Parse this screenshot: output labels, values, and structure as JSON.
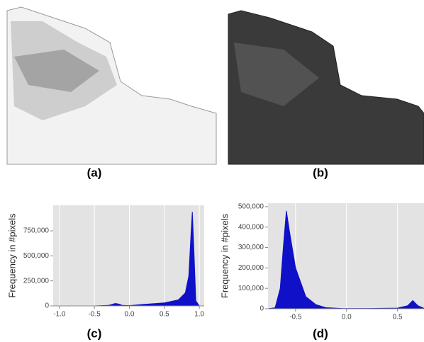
{
  "captions": [
    "(a)",
    "(b)",
    "(c)",
    "(d)"
  ],
  "chart_data": [
    {
      "type": "area",
      "y_label": "Frequency in #pixels",
      "color": "#1010c8",
      "grid": true,
      "xlim": [
        -1.09,
        1.07
      ],
      "ylim": [
        0,
        1005000
      ],
      "xticks": [
        {
          "value": -1.0,
          "label": "-1.0"
        },
        -0.5,
        {
          "value": 0,
          "label": "0.0"
        },
        0.5,
        {
          "value": 1.0,
          "label": "1.0"
        }
      ],
      "yticks": [
        0,
        {
          "value": 250000,
          "label": "250,000"
        },
        {
          "value": 500000,
          "label": "500,000"
        },
        {
          "value": 750000,
          "label": "750,000"
        }
      ],
      "x": [
        -1.0,
        -0.5,
        -0.3,
        -0.2,
        -0.15,
        -0.1,
        0,
        0.2,
        0.5,
        0.7,
        0.8,
        0.85,
        0.88,
        0.9,
        0.92,
        0.95,
        1.0
      ],
      "values": [
        0,
        0,
        5000,
        25000,
        18000,
        5000,
        3000,
        15000,
        30000,
        60000,
        130000,
        300000,
        700000,
        940000,
        600000,
        50000,
        0
      ]
    },
    {
      "type": "area",
      "y_label": "Frequency in #pixels",
      "color": "#1010c8",
      "grid": true,
      "xlim": [
        -0.77,
        0.76
      ],
      "ylim": [
        0,
        517000
      ],
      "xticks": [
        -0.5,
        {
          "value": 0,
          "label": "0.0"
        },
        0.5
      ],
      "yticks": [
        0,
        {
          "value": 100000,
          "label": "100,000"
        },
        {
          "value": 200000,
          "label": "200,000"
        },
        {
          "value": 300000,
          "label": "300,000"
        },
        {
          "value": 400000,
          "label": "400,000"
        },
        {
          "value": 500000,
          "label": "500,000"
        }
      ],
      "x": [
        -0.77,
        -0.7,
        -0.65,
        -0.62,
        -0.59,
        -0.56,
        -0.5,
        -0.4,
        -0.3,
        -0.2,
        0,
        0.5,
        0.6,
        0.65,
        0.7,
        0.76
      ],
      "values": [
        0,
        5000,
        100000,
        300000,
        480000,
        380000,
        200000,
        60000,
        20000,
        5000,
        0,
        3000,
        15000,
        40000,
        15000,
        2000
      ]
    }
  ]
}
